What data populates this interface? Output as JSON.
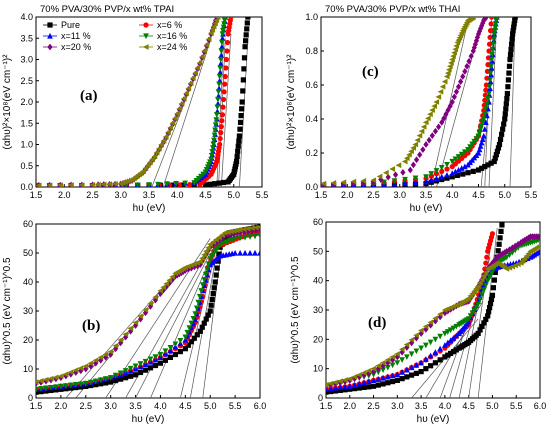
{
  "colors": {
    "Pure": "#000000",
    "x=6 %": "#ff0000",
    "x=11 %": "#0000ff",
    "x=16 %": "#008000",
    "x=20 %": "#800080",
    "x=24 %": "#808000",
    "fit_line": "#555555"
  },
  "legend": [
    "Pure",
    "x=6 %",
    "x=11 %",
    "x=16 %",
    "x=20 %",
    "x=24 %"
  ],
  "chart_data": [
    {
      "id": "a",
      "type": "scatter",
      "panel_label": "(a)",
      "title": "70% PVA/30% PVP/x wt% TPAI",
      "xlabel": "hυ (eV)",
      "ylabel": "(αhυ)²×10⁸(eV cm⁻¹)²",
      "xlim": [
        1.5,
        5.5
      ],
      "ylim": [
        0,
        4.0
      ],
      "xticks": [
        "1.5",
        "2.0",
        "2.5",
        "3.0",
        "3.5",
        "4.0",
        "4.5",
        "5.0",
        "5.5"
      ],
      "yticks": [
        "0.0",
        "0.5",
        "1.0",
        "1.5",
        "2.0",
        "2.5",
        "3.0",
        "3.5",
        "4.0"
      ],
      "series": [
        {
          "name": "Pure",
          "x": [
            1.55,
            2.5,
            3.5,
            4.5,
            4.9,
            5.0,
            5.05,
            5.1,
            5.15,
            5.2,
            5.25
          ],
          "y": [
            0.03,
            0.03,
            0.04,
            0.05,
            0.12,
            0.3,
            0.6,
            1.2,
            2.0,
            3.3,
            4.0
          ]
        },
        {
          "name": "x=6 %",
          "x": [
            1.55,
            2.5,
            3.5,
            4.4,
            4.6,
            4.7,
            4.75,
            4.8,
            4.85,
            4.9,
            4.95
          ],
          "y": [
            0.03,
            0.03,
            0.04,
            0.06,
            0.3,
            0.6,
            1.0,
            1.7,
            2.6,
            3.6,
            4.0
          ]
        },
        {
          "name": "x=11 %",
          "x": [
            1.55,
            2.5,
            3.5,
            4.3,
            4.5,
            4.6,
            4.65,
            4.7,
            4.75,
            4.8,
            4.85
          ],
          "y": [
            0.03,
            0.03,
            0.05,
            0.1,
            0.3,
            0.6,
            1.0,
            1.6,
            2.5,
            3.5,
            4.0
          ]
        },
        {
          "name": "x=16 %",
          "x": [
            1.55,
            2.5,
            3.5,
            4.3,
            4.5,
            4.6,
            4.65,
            4.7,
            4.75,
            4.8,
            4.85
          ],
          "y": [
            0.03,
            0.03,
            0.05,
            0.1,
            0.35,
            0.65,
            1.1,
            1.7,
            2.6,
            3.6,
            4.0
          ]
        },
        {
          "name": "x=20 %",
          "x": [
            1.55,
            2.5,
            3.0,
            3.2,
            3.4,
            3.6,
            3.8,
            4.0,
            4.2,
            4.4,
            4.6,
            4.7
          ],
          "y": [
            0.04,
            0.05,
            0.07,
            0.15,
            0.35,
            0.7,
            1.15,
            1.7,
            2.3,
            2.9,
            3.6,
            4.0
          ]
        },
        {
          "name": "x=24 %",
          "x": [
            1.55,
            2.5,
            3.0,
            3.2,
            3.4,
            3.6,
            3.8,
            4.0,
            4.2,
            4.4,
            4.6,
            4.72
          ],
          "y": [
            0.04,
            0.05,
            0.08,
            0.17,
            0.37,
            0.72,
            1.18,
            1.72,
            2.32,
            2.92,
            3.62,
            4.0
          ]
        }
      ],
      "fit_lines": [
        {
          "x": [
            5.1,
            5.25
          ],
          "y": [
            0,
            3.5
          ]
        },
        {
          "x": [
            4.78,
            4.95
          ],
          "y": [
            0,
            3.6
          ]
        },
        {
          "x": [
            4.73,
            4.85
          ],
          "y": [
            0,
            3.5
          ]
        },
        {
          "x": [
            4.7,
            4.82
          ],
          "y": [
            0,
            3.4
          ]
        },
        {
          "x": [
            3.55,
            4.6
          ],
          "y": [
            0,
            3.6
          ]
        },
        {
          "x": [
            3.75,
            4.6
          ],
          "y": [
            0,
            3.5
          ]
        }
      ]
    },
    {
      "id": "b",
      "type": "scatter",
      "panel_label": "(b)",
      "title": "",
      "xlabel": "hυ (eV)",
      "ylabel": "(αhυ)^0.5 (eV cm⁻¹)^0.5",
      "xlim": [
        1.5,
        6.0
      ],
      "ylim": [
        0,
        60
      ],
      "xticks": [
        "1.5",
        "2.0",
        "2.5",
        "3.0",
        "3.5",
        "4.0",
        "4.5",
        "5.0",
        "5.5",
        "6.0"
      ],
      "yticks": [
        "0",
        "10",
        "20",
        "30",
        "40",
        "50",
        "60"
      ],
      "series": [
        {
          "name": "Pure",
          "x": [
            1.5,
            2.0,
            2.5,
            3.0,
            3.5,
            4.0,
            4.5,
            4.8,
            5.0,
            5.1,
            5.2,
            5.4,
            5.7,
            6.0
          ],
          "y": [
            2,
            3,
            4,
            5.5,
            8,
            12,
            17,
            23,
            30,
            40,
            52,
            57,
            58,
            59
          ]
        },
        {
          "name": "x=6 %",
          "x": [
            1.5,
            2.0,
            2.5,
            3.0,
            3.5,
            4.0,
            4.5,
            4.7,
            4.85,
            4.95,
            5.1,
            5.4,
            5.7,
            6.0
          ],
          "y": [
            3,
            4,
            5,
            7,
            10,
            14,
            19,
            26,
            35,
            45,
            52,
            54,
            56,
            57
          ]
        },
        {
          "name": "x=11 %",
          "x": [
            1.5,
            2.0,
            2.5,
            3.0,
            3.5,
            4.0,
            4.5,
            4.7,
            4.85,
            5.0,
            5.2,
            5.5,
            6.0
          ],
          "y": [
            3,
            4,
            5,
            7,
            10,
            14,
            20,
            27,
            37,
            46,
            49,
            50,
            50
          ]
        },
        {
          "name": "x=16 %",
          "x": [
            1.5,
            2.0,
            2.5,
            3.0,
            3.5,
            4.0,
            4.5,
            4.7,
            4.85,
            5.0,
            5.2,
            5.5,
            6.0
          ],
          "y": [
            3,
            4,
            5,
            7,
            11,
            15,
            21,
            29,
            39,
            48,
            53,
            55,
            56
          ]
        },
        {
          "name": "x=20 %",
          "x": [
            1.5,
            2.0,
            2.5,
            3.0,
            3.5,
            4.0,
            4.3,
            4.5,
            4.8,
            5.0,
            5.3,
            5.6,
            6.0
          ],
          "y": [
            5,
            7,
            10,
            15,
            25,
            36,
            42,
            44,
            46,
            52,
            56,
            57,
            58
          ]
        },
        {
          "name": "x=24 %",
          "x": [
            1.5,
            2.0,
            2.5,
            3.0,
            3.5,
            4.0,
            4.3,
            4.5,
            4.8,
            5.0,
            5.3,
            5.6,
            6.0
          ],
          "y": [
            5.5,
            7.5,
            11,
            16,
            26,
            37,
            43,
            45,
            47,
            53,
            57,
            58,
            59
          ]
        }
      ],
      "fit_lines": [
        {
          "x": [
            2.1,
            4.3
          ],
          "y": [
            0,
            43
          ]
        },
        {
          "x": [
            2.3,
            4.3
          ],
          "y": [
            0,
            42
          ]
        },
        {
          "x": [
            2.9,
            5.0
          ],
          "y": [
            0,
            55
          ]
        },
        {
          "x": [
            3.3,
            5.0
          ],
          "y": [
            0,
            52
          ]
        },
        {
          "x": [
            3.5,
            5.0
          ],
          "y": [
            0,
            50
          ]
        },
        {
          "x": [
            3.8,
            5.0
          ],
          "y": [
            0,
            48
          ]
        },
        {
          "x": [
            4.4,
            5.1
          ],
          "y": [
            0,
            50
          ]
        },
        {
          "x": [
            4.6,
            5.15
          ],
          "y": [
            0,
            52
          ]
        },
        {
          "x": [
            4.85,
            5.25
          ],
          "y": [
            0,
            55
          ]
        }
      ]
    },
    {
      "id": "c",
      "type": "scatter",
      "panel_label": "(c)",
      "title": "70% PVA/30% PVP/x wt% THAI",
      "xlabel": "hυ (eV)",
      "ylabel": "(αhυ)²×10⁸(eV cm⁻¹)²",
      "xlim": [
        1.5,
        5.5
      ],
      "ylim": [
        0,
        1.0
      ],
      "xticks": [
        "1.5",
        "2.0",
        "2.5",
        "3.0",
        "3.5",
        "4.0",
        "4.5",
        "5.0",
        "5.5"
      ],
      "yticks": [
        "0.0",
        "0.2",
        "0.4",
        "0.6",
        "0.8",
        "1.0"
      ],
      "series": [
        {
          "name": "Pure",
          "x": [
            1.55,
            2.5,
            3.5,
            4.0,
            4.5,
            4.8,
            4.9,
            5.0,
            5.05,
            5.1,
            5.15,
            5.2
          ],
          "y": [
            0.01,
            0.01,
            0.02,
            0.06,
            0.1,
            0.15,
            0.25,
            0.4,
            0.55,
            0.75,
            0.9,
            1.0
          ]
        },
        {
          "name": "x=6 %",
          "x": [
            1.55,
            2.5,
            3.5,
            4.0,
            4.3,
            4.5,
            4.6,
            4.65,
            4.7,
            4.75
          ],
          "y": [
            0.01,
            0.02,
            0.05,
            0.12,
            0.2,
            0.3,
            0.45,
            0.6,
            0.8,
            1.0
          ]
        },
        {
          "name": "x=11 %",
          "x": [
            1.55,
            2.5,
            3.5,
            4.0,
            4.3,
            4.5,
            4.6,
            4.7,
            4.75,
            4.8,
            4.85
          ],
          "y": [
            0.01,
            0.01,
            0.03,
            0.08,
            0.13,
            0.2,
            0.3,
            0.5,
            0.7,
            0.9,
            1.0
          ]
        },
        {
          "name": "x=16 %",
          "x": [
            1.55,
            2.5,
            3.5,
            4.0,
            4.3,
            4.5,
            4.6,
            4.7,
            4.75,
            4.8,
            4.85
          ],
          "y": [
            0.01,
            0.02,
            0.06,
            0.15,
            0.22,
            0.3,
            0.4,
            0.55,
            0.75,
            0.9,
            1.0
          ]
        },
        {
          "name": "x=20 %",
          "x": [
            1.55,
            2.5,
            3.2,
            3.5,
            3.8,
            4.0,
            4.2,
            4.4,
            4.5,
            4.6,
            4.65
          ],
          "y": [
            0.01,
            0.03,
            0.1,
            0.25,
            0.38,
            0.5,
            0.65,
            0.8,
            0.9,
            0.98,
            1.0
          ]
        },
        {
          "name": "x=24 %",
          "x": [
            1.55,
            2.5,
            3.1,
            3.3,
            3.5,
            3.7,
            3.9,
            4.0,
            4.1,
            4.2,
            4.3,
            4.4
          ],
          "y": [
            0.02,
            0.04,
            0.15,
            0.25,
            0.38,
            0.5,
            0.65,
            0.75,
            0.85,
            0.92,
            0.98,
            1.0
          ]
        }
      ],
      "fit_lines": [
        {
          "x": [
            5.1,
            5.2
          ],
          "y": [
            0,
            1.0
          ]
        },
        {
          "x": [
            4.62,
            4.75
          ],
          "y": [
            0,
            1.0
          ]
        },
        {
          "x": [
            4.7,
            4.85
          ],
          "y": [
            0,
            1.0
          ]
        },
        {
          "x": [
            4.55,
            4.85
          ],
          "y": [
            0,
            1.0
          ]
        },
        {
          "x": [
            3.7,
            4.5
          ],
          "y": [
            0,
            0.9
          ]
        },
        {
          "x": [
            3.6,
            4.3
          ],
          "y": [
            0,
            0.98
          ]
        }
      ]
    },
    {
      "id": "d",
      "type": "scatter",
      "panel_label": "(d)",
      "title": "",
      "xlabel": "hυ (eV)",
      "ylabel": "(αhυ)^0.5 (eV cm⁻¹)^0.5",
      "xlim": [
        1.5,
        6.0
      ],
      "ylim": [
        0,
        60
      ],
      "xticks": [
        "1.5",
        "2.0",
        "2.5",
        "3.0",
        "3.5",
        "4.0",
        "4.5",
        "5.0",
        "5.5",
        "6.0"
      ],
      "yticks": [
        "0",
        "10",
        "20",
        "30",
        "40",
        "50",
        "60"
      ],
      "series": [
        {
          "name": "Pure",
          "x": [
            1.5,
            2.0,
            2.5,
            3.0,
            3.5,
            4.0,
            4.3,
            4.5,
            4.7,
            4.9,
            5.0,
            5.1,
            5.2
          ],
          "y": [
            2,
            3,
            4,
            6,
            9,
            14,
            17,
            19,
            22,
            28,
            35,
            48,
            59
          ]
        },
        {
          "name": "x=6 %",
          "x": [
            1.5,
            2.0,
            2.5,
            3.0,
            3.5,
            4.0,
            4.3,
            4.5,
            4.65,
            4.8,
            4.9,
            5.0
          ],
          "y": [
            3,
            4,
            6,
            8,
            12,
            17,
            22,
            25,
            32,
            40,
            50,
            56
          ]
        },
        {
          "name": "x=11 %",
          "x": [
            1.5,
            2.0,
            2.5,
            3.0,
            3.5,
            4.0,
            4.3,
            4.5,
            4.7,
            4.85,
            5.0,
            5.2,
            5.5,
            5.8,
            6.0
          ],
          "y": [
            3,
            4,
            6,
            8,
            12,
            18,
            22,
            26,
            33,
            40,
            44,
            45,
            46,
            48,
            50
          ]
        },
        {
          "name": "x=16 %",
          "x": [
            1.5,
            2.0,
            2.5,
            3.0,
            3.5,
            4.0,
            4.3,
            4.5,
            4.7,
            4.9,
            5.1,
            5.3,
            5.6,
            5.8,
            6.0
          ],
          "y": [
            4,
            6,
            8,
            12,
            17,
            22,
            25,
            27,
            32,
            40,
            46,
            48,
            52,
            53,
            54
          ]
        },
        {
          "name": "x=20 %",
          "x": [
            1.5,
            2.0,
            2.5,
            3.0,
            3.5,
            4.0,
            4.3,
            4.5,
            4.7,
            4.9,
            5.1,
            5.3,
            5.6,
            5.8,
            6.0
          ],
          "y": [
            4,
            6,
            9,
            14,
            22,
            29,
            32,
            33,
            38,
            44,
            48,
            50,
            53,
            55,
            55
          ]
        },
        {
          "name": "x=24 %",
          "x": [
            1.5,
            2.0,
            2.5,
            3.0,
            3.5,
            4.0,
            4.3,
            4.5,
            4.7,
            4.9,
            5.1,
            5.3,
            5.6,
            5.8,
            6.0
          ],
          "y": [
            4.5,
            6.5,
            10,
            15,
            23,
            30,
            32,
            34,
            38,
            44,
            46,
            44,
            46,
            50,
            52
          ]
        }
      ],
      "fit_lines": [
        {
          "x": [
            3.3,
            4.7
          ],
          "y": [
            0,
            27
          ]
        },
        {
          "x": [
            3.6,
            4.8
          ],
          "y": [
            0,
            33
          ]
        },
        {
          "x": [
            3.9,
            4.9
          ],
          "y": [
            0,
            44
          ]
        },
        {
          "x": [
            4.1,
            4.95
          ],
          "y": [
            0,
            48
          ]
        },
        {
          "x": [
            4.3,
            4.95
          ],
          "y": [
            0,
            52
          ]
        },
        {
          "x": [
            4.5,
            5.0
          ],
          "y": [
            0,
            56
          ]
        },
        {
          "x": [
            4.7,
            5.1
          ],
          "y": [
            0,
            58
          ]
        }
      ]
    }
  ]
}
